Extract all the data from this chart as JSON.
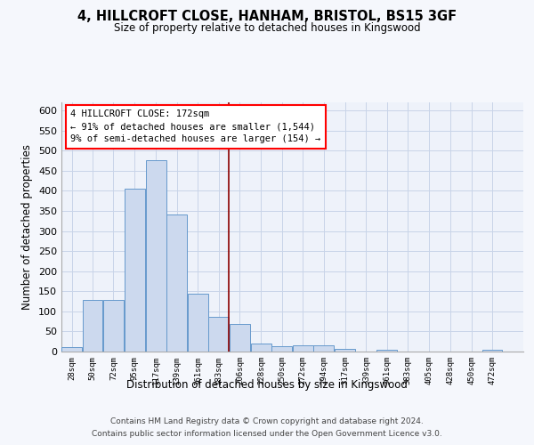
{
  "title": "4, HILLCROFT CLOSE, HANHAM, BRISTOL, BS15 3GF",
  "subtitle": "Size of property relative to detached houses in Kingswood",
  "xlabel": "Distribution of detached houses by size in Kingswood",
  "ylabel": "Number of detached properties",
  "bar_labels": [
    "28sqm",
    "50sqm",
    "72sqm",
    "95sqm",
    "117sqm",
    "139sqm",
    "161sqm",
    "183sqm",
    "206sqm",
    "228sqm",
    "250sqm",
    "272sqm",
    "294sqm",
    "317sqm",
    "339sqm",
    "361sqm",
    "383sqm",
    "405sqm",
    "428sqm",
    "450sqm",
    "472sqm"
  ],
  "bar_values": [
    10,
    128,
    128,
    405,
    475,
    340,
    145,
    87,
    68,
    20,
    13,
    15,
    15,
    7,
    0,
    5,
    0,
    0,
    0,
    0,
    5
  ],
  "bar_color": "#ccd9ee",
  "bar_edge_color": "#6699cc",
  "bin_edges": [
    6,
    28,
    50,
    72,
    95,
    117,
    139,
    161,
    183,
    206,
    228,
    250,
    272,
    294,
    317,
    339,
    361,
    383,
    405,
    428,
    450,
    472,
    494
  ],
  "redline_x": 183,
  "annotation_line1": "4 HILLCROFT CLOSE: 172sqm",
  "annotation_line2": "← 91% of detached houses are smaller (1,544)",
  "annotation_line3": "9% of semi-detached houses are larger (154) →",
  "grid_color": "#c8d4e8",
  "ylim_max": 620,
  "yticks": [
    0,
    50,
    100,
    150,
    200,
    250,
    300,
    350,
    400,
    450,
    500,
    550,
    600
  ],
  "footer_line1": "Contains HM Land Registry data © Crown copyright and database right 2024.",
  "footer_line2": "Contains public sector information licensed under the Open Government Licence v3.0.",
  "bg_color": "#eef2fa",
  "fig_bg_color": "#f5f7fc"
}
